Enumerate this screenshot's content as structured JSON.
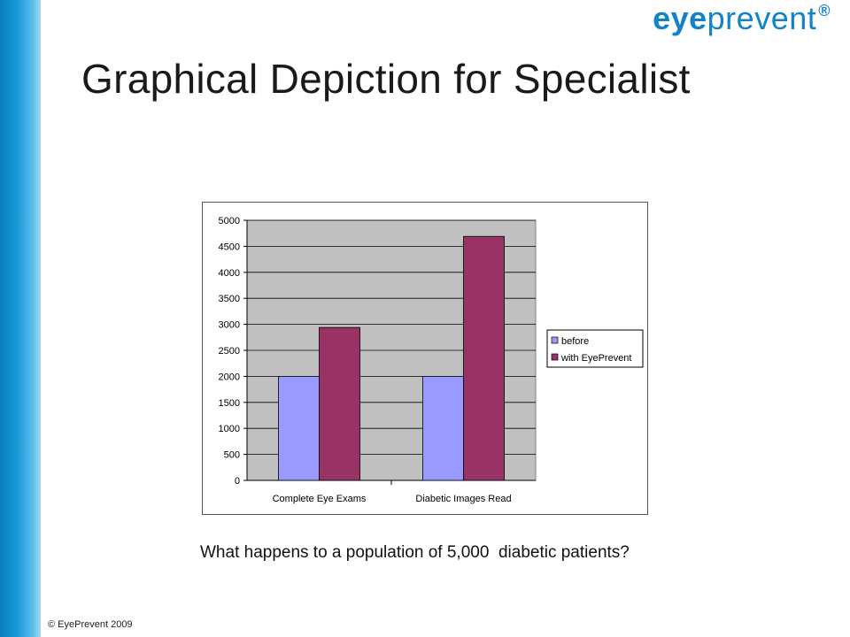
{
  "logo": {
    "part1": "eye",
    "part2": "prevent",
    "reg": "®"
  },
  "slide": {
    "title": "Graphical Depiction for Specialist",
    "caption": "What happens to a population of 5,000  diabetic patients?",
    "copyright": "© EyePrevent 2009"
  },
  "colors": {
    "accent": "#1283c7",
    "plot_bg": "#c0c0c0",
    "series_before": "#9999ff",
    "series_with": "#993366"
  },
  "chart_data": {
    "type": "bar",
    "title": "",
    "xlabel": "",
    "ylabel": "",
    "categories": [
      "Complete Eye Exams",
      "Diabetic Images Read"
    ],
    "series": [
      {
        "name": "before",
        "values": [
          2000,
          2000
        ]
      },
      {
        "name": "with EyePrevent",
        "values": [
          2940,
          4690
        ]
      }
    ],
    "ylim": [
      0,
      5000
    ],
    "yticks": [
      "0",
      "500",
      "1000",
      "1500",
      "2000",
      "2500",
      "3000",
      "3500",
      "4000",
      "4500",
      "5000"
    ],
    "grid": true,
    "legend": "right"
  }
}
